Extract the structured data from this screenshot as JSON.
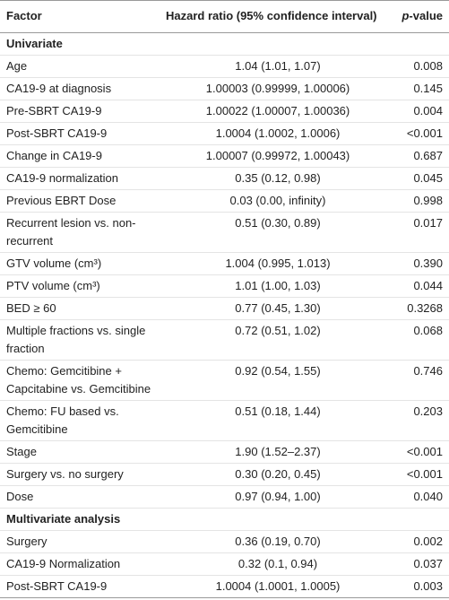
{
  "table": {
    "columns": [
      "Factor",
      "Hazard ratio (95% confidence interval)",
      "p-value"
    ],
    "rows": [
      {
        "section": "Univariate"
      },
      {
        "factor": "Age",
        "hr": "1.04 (1.01, 1.07)",
        "p": "0.008"
      },
      {
        "factor": "CA19-9 at diagnosis",
        "hr": "1.00003 (0.99999, 1.00006)",
        "p": "0.145"
      },
      {
        "factor": "Pre-SBRT CA19-9",
        "hr": "1.00022 (1.00007, 1.00036)",
        "p": "0.004"
      },
      {
        "factor": "Post-SBRT CA19-9",
        "hr": "1.0004 (1.0002, 1.0006)",
        "p": "<0.001"
      },
      {
        "factor": "Change in CA19-9",
        "hr": "1.00007 (0.99972, 1.00043)",
        "p": "0.687"
      },
      {
        "factor": "CA19-9 normalization",
        "hr": "0.35 (0.12, 0.98)",
        "p": "0.045"
      },
      {
        "factor": "Previous EBRT Dose",
        "hr": "0.03 (0.00, infinity)",
        "p": "0.998"
      },
      {
        "factor": "Recurrent lesion vs. non-recurrent",
        "hr": "0.51 (0.30, 0.89)",
        "p": "0.017"
      },
      {
        "factor": "GTV volume (cm³)",
        "hr": "1.004 (0.995, 1.013)",
        "p": "0.390"
      },
      {
        "factor": "PTV volume (cm³)",
        "hr": "1.01 (1.00, 1.03)",
        "p": "0.044"
      },
      {
        "factor": "BED ≥ 60",
        "hr": "0.77 (0.45, 1.30)",
        "p": "0.3268"
      },
      {
        "factor": "Multiple fractions vs. single fraction",
        "hr": "0.72 (0.51, 1.02)",
        "p": "0.068"
      },
      {
        "factor": "Chemo: Gemcitibine + Capcitabine vs. Gemcitibine",
        "hr": "0.92 (0.54, 1.55)",
        "p": "0.746"
      },
      {
        "factor": "Chemo: FU based vs. Gemcitibine",
        "hr": "0.51 (0.18, 1.44)",
        "p": "0.203"
      },
      {
        "factor": "Stage",
        "hr": "1.90 (1.52–2.37)",
        "p": "<0.001"
      },
      {
        "factor": "Surgery vs. no surgery",
        "hr": "0.30 (0.20, 0.45)",
        "p": "<0.001"
      },
      {
        "factor": "Dose",
        "hr": "0.97 (0.94, 1.00)",
        "p": "0.040"
      },
      {
        "section": "Multivariate analysis"
      },
      {
        "factor": "Surgery",
        "hr": "0.36 (0.19, 0.70)",
        "p": "0.002"
      },
      {
        "factor": "CA19-9 Normalization",
        "hr": "0.32 (0.1, 0.94)",
        "p": "0.037"
      },
      {
        "factor": "Post-SBRT CA19-9",
        "hr": "1.0004 (1.0001, 1.0005)",
        "p": "0.003"
      }
    ]
  }
}
